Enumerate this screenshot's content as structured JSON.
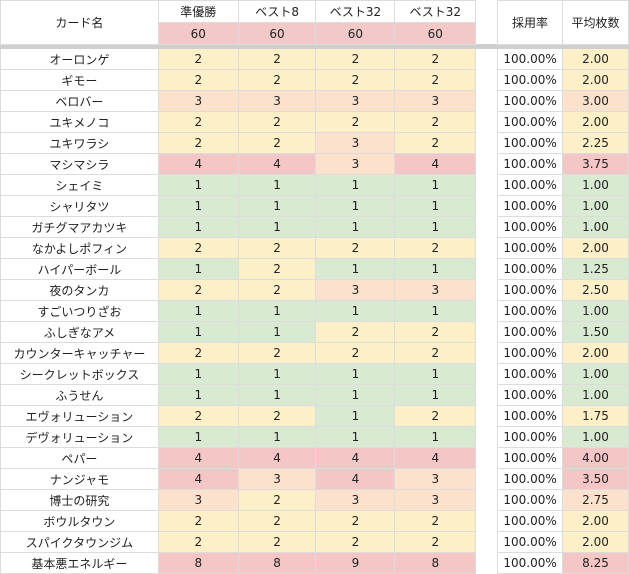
{
  "headers": {
    "card_name": "カード名",
    "columns": [
      "準優勝",
      "ベスト8",
      "ベスト32",
      "ベスト32"
    ],
    "counts": [
      "60",
      "60",
      "60",
      "60"
    ],
    "adoption": "採用率",
    "average": "平均枚数"
  },
  "colors": {
    "red": "#f5c6c6",
    "yellow": "#fdf0c8",
    "green": "#d9ead3",
    "orange": "#fce2cc",
    "header_count": "#f3c8c8"
  },
  "rows": [
    {
      "name": "オーロンゲ",
      "vals": [
        "2",
        "2",
        "2",
        "2"
      ],
      "rate": "100.00%",
      "avg": "2.00",
      "c": [
        "yel",
        "yel",
        "yel",
        "yel",
        "yel"
      ]
    },
    {
      "name": "ギモー",
      "vals": [
        "2",
        "2",
        "2",
        "2"
      ],
      "rate": "100.00%",
      "avg": "2.00",
      "c": [
        "yel",
        "yel",
        "yel",
        "yel",
        "yel"
      ]
    },
    {
      "name": "ベロバー",
      "vals": [
        "3",
        "3",
        "3",
        "3"
      ],
      "rate": "100.00%",
      "avg": "3.00",
      "c": [
        "org",
        "org",
        "org",
        "org",
        "org"
      ]
    },
    {
      "name": "ユキメノコ",
      "vals": [
        "2",
        "2",
        "2",
        "2"
      ],
      "rate": "100.00%",
      "avg": "2.00",
      "c": [
        "yel",
        "yel",
        "yel",
        "yel",
        "yel"
      ]
    },
    {
      "name": "ユキワラシ",
      "vals": [
        "2",
        "2",
        "3",
        "2"
      ],
      "rate": "100.00%",
      "avg": "2.25",
      "c": [
        "yel",
        "yel",
        "org",
        "yel",
        "yel"
      ]
    },
    {
      "name": "マシマシラ",
      "vals": [
        "4",
        "4",
        "3",
        "4"
      ],
      "rate": "100.00%",
      "avg": "3.75",
      "c": [
        "red",
        "red",
        "org",
        "red",
        "red"
      ]
    },
    {
      "name": "シェイミ",
      "vals": [
        "1",
        "1",
        "1",
        "1"
      ],
      "rate": "100.00%",
      "avg": "1.00",
      "c": [
        "grn",
        "grn",
        "grn",
        "grn",
        "grn"
      ]
    },
    {
      "name": "シャリタツ",
      "vals": [
        "1",
        "1",
        "1",
        "1"
      ],
      "rate": "100.00%",
      "avg": "1.00",
      "c": [
        "grn",
        "grn",
        "grn",
        "grn",
        "grn"
      ]
    },
    {
      "name": "ガチグマアカツキ",
      "vals": [
        "1",
        "1",
        "1",
        "1"
      ],
      "rate": "100.00%",
      "avg": "1.00",
      "c": [
        "grn",
        "grn",
        "grn",
        "grn",
        "grn"
      ]
    },
    {
      "name": "なかよしポフィン",
      "vals": [
        "2",
        "2",
        "2",
        "2"
      ],
      "rate": "100.00%",
      "avg": "2.00",
      "c": [
        "yel",
        "yel",
        "yel",
        "yel",
        "yel"
      ]
    },
    {
      "name": "ハイパーボール",
      "vals": [
        "1",
        "2",
        "1",
        "1"
      ],
      "rate": "100.00%",
      "avg": "1.25",
      "c": [
        "grn",
        "yel",
        "grn",
        "grn",
        "grn"
      ]
    },
    {
      "name": "夜のタンカ",
      "vals": [
        "2",
        "2",
        "3",
        "3"
      ],
      "rate": "100.00%",
      "avg": "2.50",
      "c": [
        "yel",
        "yel",
        "org",
        "org",
        "yel"
      ]
    },
    {
      "name": "すごいつりざお",
      "vals": [
        "1",
        "1",
        "1",
        "1"
      ],
      "rate": "100.00%",
      "avg": "1.00",
      "c": [
        "grn",
        "grn",
        "grn",
        "grn",
        "grn"
      ]
    },
    {
      "name": "ふしぎなアメ",
      "vals": [
        "1",
        "1",
        "2",
        "2"
      ],
      "rate": "100.00%",
      "avg": "1.50",
      "c": [
        "grn",
        "grn",
        "yel",
        "yel",
        "grn"
      ]
    },
    {
      "name": "カウンターキャッチャー",
      "vals": [
        "2",
        "2",
        "2",
        "2"
      ],
      "rate": "100.00%",
      "avg": "2.00",
      "c": [
        "yel",
        "yel",
        "yel",
        "yel",
        "yel"
      ]
    },
    {
      "name": "シークレットボックス",
      "vals": [
        "1",
        "1",
        "1",
        "1"
      ],
      "rate": "100.00%",
      "avg": "1.00",
      "c": [
        "grn",
        "grn",
        "grn",
        "grn",
        "grn"
      ]
    },
    {
      "name": "ふうせん",
      "vals": [
        "1",
        "1",
        "1",
        "1"
      ],
      "rate": "100.00%",
      "avg": "1.00",
      "c": [
        "grn",
        "grn",
        "grn",
        "grn",
        "grn"
      ]
    },
    {
      "name": "エヴォリューション",
      "vals": [
        "2",
        "2",
        "1",
        "2"
      ],
      "rate": "100.00%",
      "avg": "1.75",
      "c": [
        "yel",
        "yel",
        "grn",
        "yel",
        "yel"
      ]
    },
    {
      "name": "デヴォリューション",
      "vals": [
        "1",
        "1",
        "1",
        "1"
      ],
      "rate": "100.00%",
      "avg": "1.00",
      "c": [
        "grn",
        "grn",
        "grn",
        "grn",
        "grn"
      ]
    },
    {
      "name": "ペパー",
      "vals": [
        "4",
        "4",
        "4",
        "4"
      ],
      "rate": "100.00%",
      "avg": "4.00",
      "c": [
        "red",
        "red",
        "red",
        "red",
        "red"
      ]
    },
    {
      "name": "ナンジャモ",
      "vals": [
        "4",
        "3",
        "4",
        "3"
      ],
      "rate": "100.00%",
      "avg": "3.50",
      "c": [
        "red",
        "org",
        "red",
        "org",
        "red"
      ]
    },
    {
      "name": "博士の研究",
      "vals": [
        "3",
        "2",
        "3",
        "3"
      ],
      "rate": "100.00%",
      "avg": "2.75",
      "c": [
        "org",
        "yel",
        "org",
        "org",
        "org"
      ]
    },
    {
      "name": "ボウルタウン",
      "vals": [
        "2",
        "2",
        "2",
        "2"
      ],
      "rate": "100.00%",
      "avg": "2.00",
      "c": [
        "yel",
        "yel",
        "yel",
        "yel",
        "yel"
      ]
    },
    {
      "name": "スパイクタウンジム",
      "vals": [
        "2",
        "2",
        "2",
        "2"
      ],
      "rate": "100.00%",
      "avg": "2.00",
      "c": [
        "yel",
        "yel",
        "yel",
        "yel",
        "yel"
      ]
    },
    {
      "name": "基本悪エネルギー",
      "vals": [
        "8",
        "8",
        "9",
        "8"
      ],
      "rate": "100.00%",
      "avg": "8.25",
      "c": [
        "red",
        "red",
        "red",
        "red",
        "red"
      ]
    }
  ]
}
